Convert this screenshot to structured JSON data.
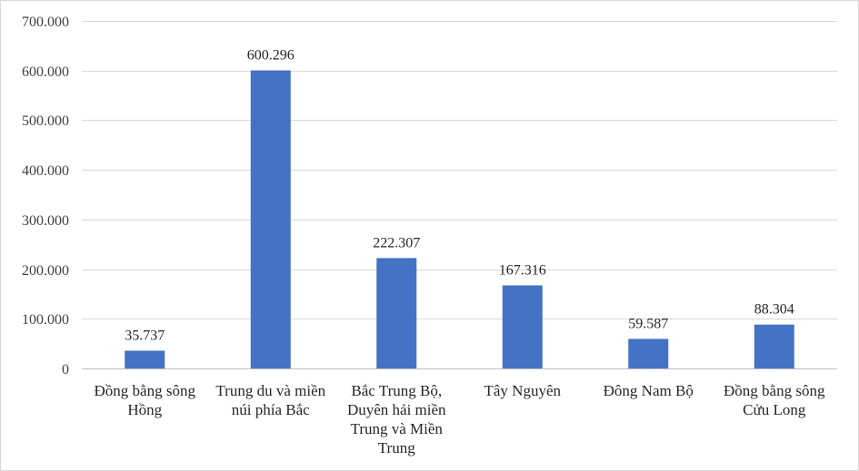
{
  "chart_data": {
    "type": "bar",
    "title": "",
    "xlabel": "",
    "ylabel": "",
    "ylim": [
      0,
      700000
    ],
    "yticks": [
      0,
      100000,
      200000,
      300000,
      400000,
      500000,
      600000,
      700000
    ],
    "ytick_labels": [
      "0",
      "100.000",
      "200.000",
      "300.000",
      "400.000",
      "500.000",
      "600.000",
      "700.000"
    ],
    "grid": true,
    "legend": "none",
    "bar_color": "#4472c4",
    "categories": [
      [
        "Đồng bằng sông",
        "Hồng"
      ],
      [
        "Trung du và miền",
        "núi phía Bắc"
      ],
      [
        "Bắc Trung Bộ,",
        "Duyên hải miền",
        "Trung và Miền",
        "Trung"
      ],
      [
        "Tây Nguyên"
      ],
      [
        "Đông Nam Bộ"
      ],
      [
        "Đồng bằng sông",
        "Cửu Long"
      ]
    ],
    "values": [
      35737,
      600296,
      222307,
      167316,
      59587,
      88304
    ],
    "data_labels": [
      "35.737",
      "600.296",
      "222.307",
      "167.316",
      "59.587",
      "88.304"
    ]
  }
}
